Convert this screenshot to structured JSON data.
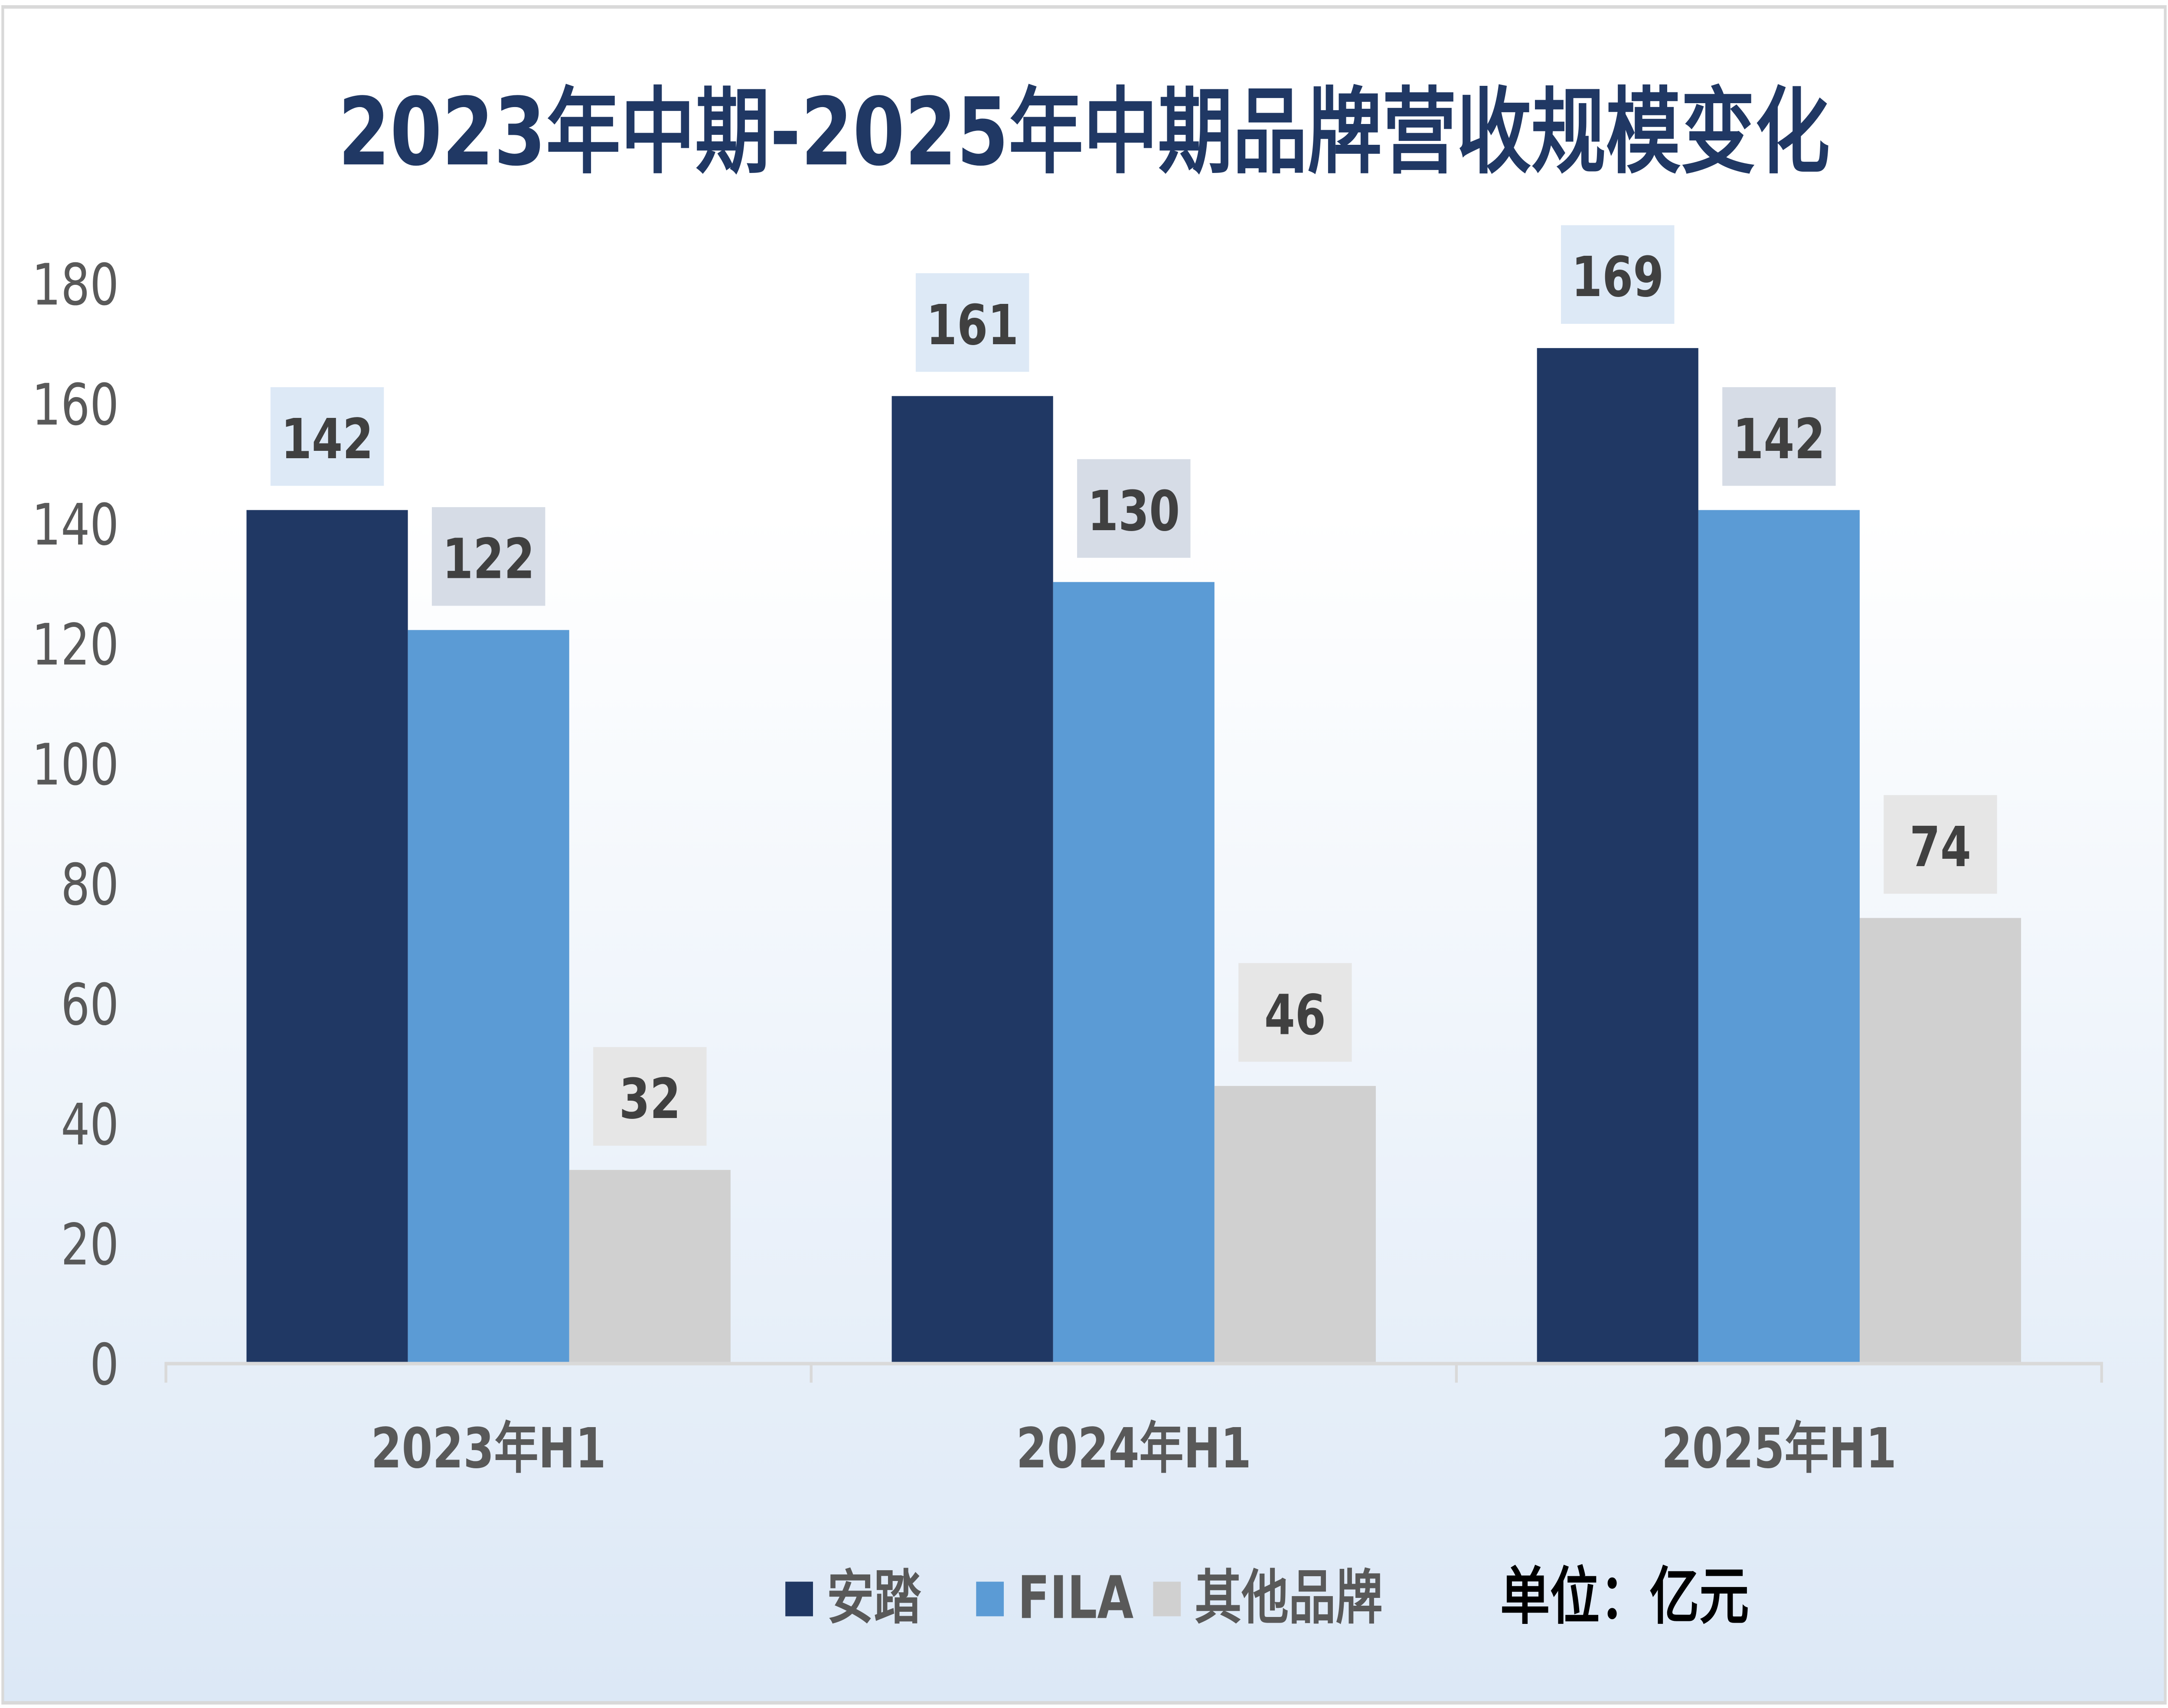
{
  "chart_data": {
    "type": "bar",
    "title": "2023年中期-2025年中期品牌营收规模变化",
    "categories": [
      "2023年H1",
      "2024年H1",
      "2025年H1"
    ],
    "series": [
      {
        "name": "安踏",
        "values": [
          142,
          161,
          169
        ],
        "color": "#203864",
        "label_bg": "#dde9f6"
      },
      {
        "name": "FILA",
        "values": [
          122,
          130,
          142
        ],
        "color": "#5b9bd5",
        "label_bg": "#d6dce6"
      },
      {
        "name": "其他品牌",
        "values": [
          32,
          46,
          74
        ],
        "color": "#d0d0d0",
        "label_bg": "#e6e6e6"
      }
    ],
    "ylim": [
      0,
      180
    ],
    "yticks": [
      0,
      20,
      40,
      60,
      80,
      100,
      120,
      140,
      160,
      180
    ],
    "grid": false,
    "legend": "bottom",
    "unit_note": "单位：亿元",
    "colors": {
      "title": "#203864",
      "tick": "#595959",
      "axis": "#d9d9d9",
      "background_top": "#ffffff",
      "background_bottom": "#dce8f6"
    }
  }
}
